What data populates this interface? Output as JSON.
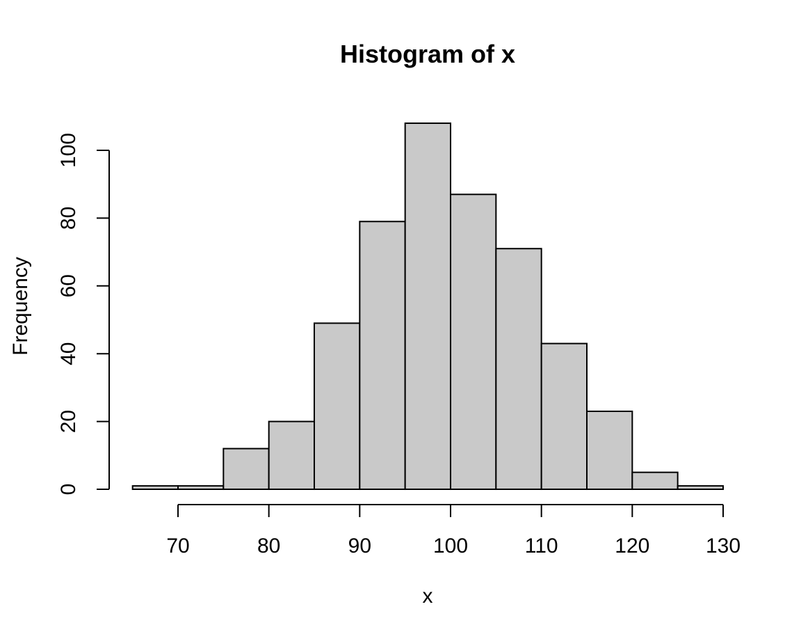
{
  "figure": {
    "background": "#FFFFFF"
  },
  "chart_data": {
    "type": "bar",
    "subtype": "histogram",
    "title": "Histogram of x",
    "xlabel": "x",
    "ylabel": "Frequency",
    "bin_breaks": [
      65,
      70,
      75,
      80,
      85,
      90,
      95,
      100,
      105,
      110,
      115,
      120,
      125,
      130
    ],
    "counts": [
      1,
      1,
      12,
      20,
      49,
      79,
      108,
      87,
      71,
      43,
      23,
      5,
      1
    ],
    "x_ticks": [
      70,
      80,
      90,
      100,
      110,
      120,
      130
    ],
    "y_ticks": [
      0,
      20,
      40,
      60,
      80,
      100
    ],
    "xlim": [
      65,
      130
    ],
    "ylim": [
      0,
      108
    ],
    "grid": false,
    "legend": "none",
    "bar_fill": "#C9C9C9",
    "bar_stroke": "#000000",
    "axis_color": "#000000",
    "text_color": "#000000"
  }
}
